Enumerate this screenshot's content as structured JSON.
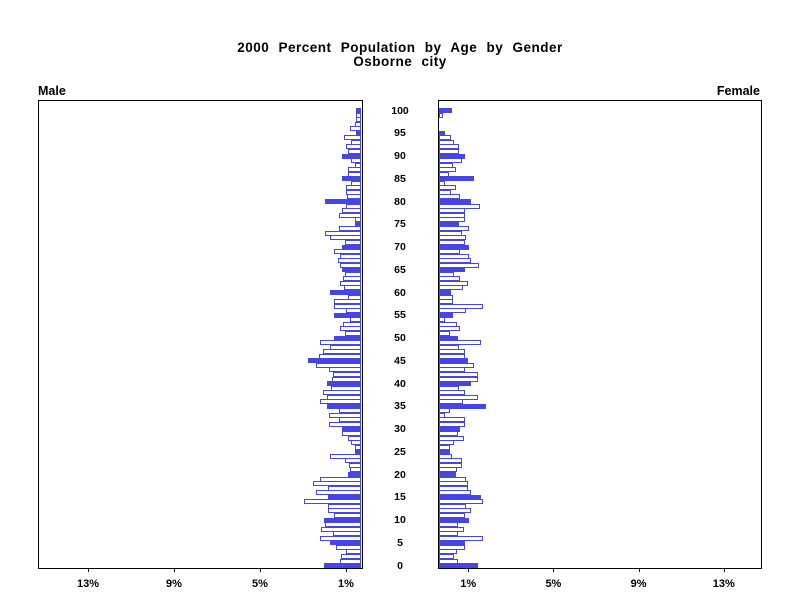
{
  "header": {
    "title": "2000 Percent Population by Age by Gender",
    "subtitle": "Osborne city",
    "left_panel_label": "Male",
    "right_panel_label": "Female"
  },
  "chart_data": {
    "type": "bar",
    "variant": "population-pyramid",
    "title": "2000 Percent Population by Age by Gender",
    "subtitle": "Osborne city",
    "left_series": "Male",
    "right_series": "Female",
    "unit": "percent",
    "age_axis": {
      "min": 0,
      "max": 100,
      "tick_step": 5,
      "tick_labels": [
        "0",
        "5",
        "10",
        "15",
        "20",
        "25",
        "30",
        "35",
        "40",
        "45",
        "50",
        "55",
        "60",
        "65",
        "70",
        "75",
        "80",
        "85",
        "90",
        "95",
        "100"
      ]
    },
    "pct_axis": {
      "tick_values": [
        1,
        5,
        9,
        13
      ],
      "left_tick_labels": [
        "13%",
        "9%",
        "5%",
        "1%"
      ],
      "right_tick_labels": [
        "1%",
        "5%",
        "9%",
        "13%"
      ],
      "max_pct": 15
    },
    "highlight_rule": "bars for ages divisible by 5 are solid filled; other ages are white with outline",
    "colors": {
      "bar_outline": "#4545E8",
      "highlight_fill": "#4545E8",
      "regular_fill": "#FFFFFF",
      "axis": "#000000",
      "text": "#000000",
      "background": "#FFFFFF"
    },
    "ages": [
      0,
      1,
      2,
      3,
      4,
      5,
      6,
      7,
      8,
      9,
      10,
      11,
      12,
      13,
      14,
      15,
      16,
      17,
      18,
      19,
      20,
      21,
      22,
      23,
      24,
      25,
      26,
      27,
      28,
      29,
      30,
      31,
      32,
      33,
      34,
      35,
      36,
      37,
      38,
      39,
      40,
      41,
      42,
      43,
      44,
      45,
      46,
      47,
      48,
      49,
      50,
      51,
      52,
      53,
      54,
      55,
      56,
      57,
      58,
      59,
      60,
      61,
      62,
      63,
      64,
      65,
      66,
      67,
      68,
      69,
      70,
      71,
      72,
      73,
      74,
      75,
      76,
      77,
      78,
      79,
      80,
      81,
      82,
      83,
      84,
      85,
      86,
      87,
      88,
      89,
      90,
      91,
      92,
      93,
      94,
      95,
      96,
      97,
      98,
      99,
      100
    ],
    "male_pct": [
      1.75,
      1.0,
      0.95,
      0.7,
      1.15,
      1.45,
      1.9,
      1.3,
      1.85,
      1.7,
      1.75,
      1.25,
      1.55,
      1.55,
      2.65,
      1.55,
      2.1,
      1.55,
      2.25,
      1.9,
      0.6,
      0.5,
      0.55,
      0.75,
      1.45,
      0.3,
      0.3,
      0.45,
      0.6,
      0.9,
      0.9,
      1.5,
      1.05,
      1.5,
      1.05,
      1.6,
      1.9,
      1.6,
      1.8,
      1.4,
      1.6,
      1.35,
      1.3,
      1.5,
      2.1,
      2.5,
      1.95,
      1.8,
      1.45,
      1.9,
      1.25,
      0.75,
      1.0,
      0.85,
      0.5,
      1.25,
      0.7,
      1.25,
      1.25,
      0.6,
      1.45,
      0.8,
      1.0,
      0.85,
      0.75,
      0.9,
      1.0,
      1.1,
      1.0,
      1.25,
      0.9,
      0.75,
      1.45,
      1.7,
      1.05,
      0.3,
      0.3,
      1.05,
      0.9,
      0.7,
      1.7,
      0.65,
      0.7,
      0.7,
      0.45,
      0.9,
      0.6,
      0.6,
      0.3,
      0.45,
      0.9,
      0.6,
      0.7,
      0.45,
      0.8,
      0.25,
      0.5,
      0.3,
      0.25,
      0.25,
      0.25
    ],
    "female_pct": [
      1.8,
      0.9,
      0.7,
      0.85,
      1.2,
      1.2,
      2.05,
      0.9,
      1.15,
      0.9,
      1.4,
      1.2,
      1.5,
      1.25,
      2.05,
      1.95,
      1.5,
      1.35,
      1.35,
      1.25,
      0.8,
      0.85,
      1.05,
      1.05,
      0.6,
      0.5,
      0.5,
      0.7,
      1.15,
      0.9,
      1.0,
      1.2,
      1.2,
      0.3,
      0.5,
      2.2,
      1.1,
      1.8,
      1.2,
      0.95,
      1.5,
      1.8,
      1.8,
      1.2,
      1.65,
      1.35,
      1.2,
      1.2,
      0.95,
      1.95,
      0.9,
      0.5,
      1.0,
      0.85,
      0.3,
      0.65,
      1.25,
      2.05,
      0.65,
      0.65,
      0.55,
      1.1,
      1.35,
      1.0,
      0.7,
      1.2,
      1.85,
      1.5,
      1.4,
      1.0,
      1.4,
      1.2,
      1.25,
      1.05,
      1.4,
      0.95,
      1.2,
      1.2,
      1.2,
      1.9,
      1.5,
      1.0,
      0.55,
      0.8,
      0.3,
      1.65,
      0.45,
      0.8,
      0.65,
      1.05,
      1.2,
      0.95,
      0.95,
      0.7,
      0.55,
      0.3,
      0.0,
      0.0,
      0.0,
      0.2,
      0.6
    ]
  }
}
